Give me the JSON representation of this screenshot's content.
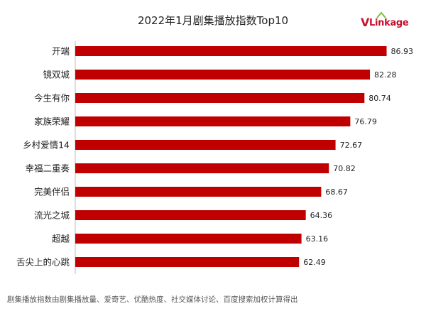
{
  "chart_data": {
    "type": "bar",
    "orientation": "horizontal",
    "title": "2022年1月剧集播放指数Top10",
    "categories": [
      "开端",
      "镜双城",
      "今生有你",
      "家族荣耀",
      "乡村爱情14",
      "幸福二重奏",
      "完美伴侣",
      "流光之城",
      "超越",
      "舌尖上的心跳"
    ],
    "values": [
      86.93,
      82.28,
      80.74,
      76.79,
      72.67,
      70.82,
      68.67,
      64.36,
      63.16,
      62.49
    ],
    "value_labels": [
      "86.93",
      "82.28",
      "80.74",
      "76.79",
      "72.67",
      "70.82",
      "68.67",
      "64.36",
      "63.16",
      "62.49"
    ],
    "xlim": [
      0,
      90
    ],
    "grid": false,
    "bar_color": "#c00000"
  },
  "logo": {
    "text_v": "V",
    "text_rest": "Linkage"
  },
  "footnote": "剧集播放指数由剧集播放量、爱奇艺、优酷热度、社交媒体讨论、百度搜索加权计算得出"
}
